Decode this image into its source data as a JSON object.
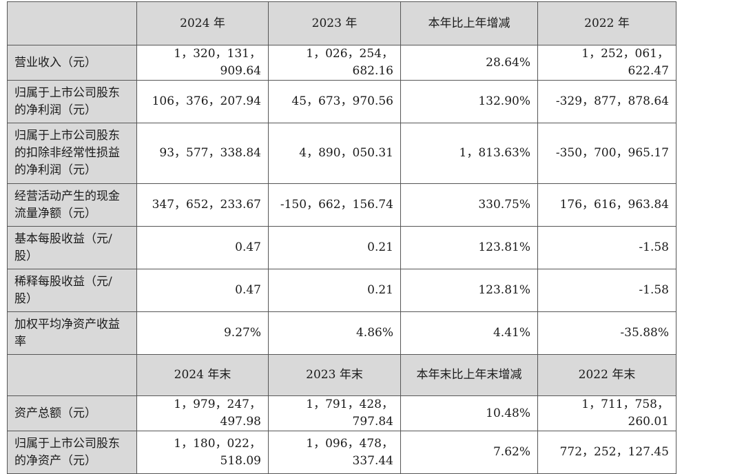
{
  "header1": [
    "",
    "2024 年",
    "2023 年",
    "本年比上年增减",
    "2022 年"
  ],
  "rows1": [
    {
      "label": "营业收入（元）",
      "values": [
        "1，320，131，909.64",
        "1，026，254，682.16",
        "28.64%",
        "1，252，061，622.47"
      ]
    },
    {
      "label": "归属于上市公司股东的净利润（元）",
      "values": [
        "106，376，207.94",
        "45，673，970.56",
        "132.90%",
        "-329，877，878.64"
      ]
    },
    {
      "label": "归属于上市公司股东的扣除非经常性损益的净利润（元）",
      "values": [
        "93，577，338.84",
        "4，890，050.31",
        "1，813.63%",
        "-350，700，965.17"
      ]
    },
    {
      "label": "经营活动产生的现金流量净额（元）",
      "values": [
        "347，652，233.67",
        "-150，662，156.74",
        "330.75%",
        "176，616，963.84"
      ]
    },
    {
      "label": "基本每股收益（元/股）",
      "values": [
        "0.47",
        "0.21",
        "123.81%",
        "-1.58"
      ]
    },
    {
      "label": "稀释每股收益（元/股）",
      "values": [
        "0.47",
        "0.21",
        "123.81%",
        "-1.58"
      ]
    },
    {
      "label": "加权平均净资产收益率",
      "values": [
        "9.27%",
        "4.86%",
        "4.41%",
        "-35.88%"
      ]
    }
  ],
  "header2": [
    "",
    "2024 年末",
    "2023 年末",
    "本年末比上年末增减",
    "2022 年末"
  ],
  "rows2": [
    {
      "label": "资产总额（元）",
      "values": [
        "1，979，247，497.98",
        "1，791，428，797.84",
        "10.48%",
        "1，711，758，260.01"
      ]
    },
    {
      "label": "归属于上市公司股东的净资产（元）",
      "values": [
        "1，180，022，518.09",
        "1，096，478，337.44",
        "7.62%",
        "772，252，127.45"
      ]
    }
  ]
}
